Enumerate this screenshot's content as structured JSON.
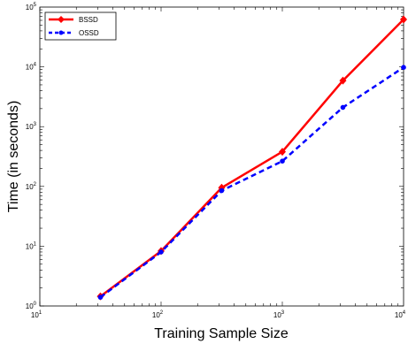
{
  "chart_data": {
    "type": "line",
    "title": "",
    "xlabel": "Training Sample Size",
    "ylabel": "Time (in seconds)",
    "x_scale": "log",
    "y_scale": "log",
    "xlim": [
      10,
      10000
    ],
    "ylim": [
      1,
      100000
    ],
    "x_ticks": [
      {
        "value": 10,
        "base": "10",
        "exp": "1"
      },
      {
        "value": 100,
        "base": "10",
        "exp": "2"
      },
      {
        "value": 1000,
        "base": "10",
        "exp": "3"
      },
      {
        "value": 10000,
        "base": "10",
        "exp": "4"
      }
    ],
    "y_ticks": [
      {
        "value": 1,
        "base": "10",
        "exp": "0"
      },
      {
        "value": 10,
        "base": "10",
        "exp": "1"
      },
      {
        "value": 100,
        "base": "10",
        "exp": "2"
      },
      {
        "value": 1000,
        "base": "10",
        "exp": "3"
      },
      {
        "value": 10000,
        "base": "10",
        "exp": "4"
      },
      {
        "value": 100000,
        "base": "10",
        "exp": "5"
      }
    ],
    "grid": false,
    "legend_position": "top-left",
    "series": [
      {
        "name": "BSSD",
        "color": "#ff0000",
        "line_style": "solid",
        "marker": "diamond",
        "x": [
          31.6,
          100,
          316,
          1000,
          3160,
          10000
        ],
        "y": [
          1.45,
          8.3,
          95,
          380,
          5900,
          62000
        ]
      },
      {
        "name": "OSSD",
        "color": "#0000ff",
        "line_style": "dashed",
        "marker": "circle",
        "x": [
          31.6,
          100,
          316,
          1000,
          3160,
          10000
        ],
        "y": [
          1.4,
          8.0,
          85,
          265,
          2100,
          9800
        ]
      }
    ]
  }
}
